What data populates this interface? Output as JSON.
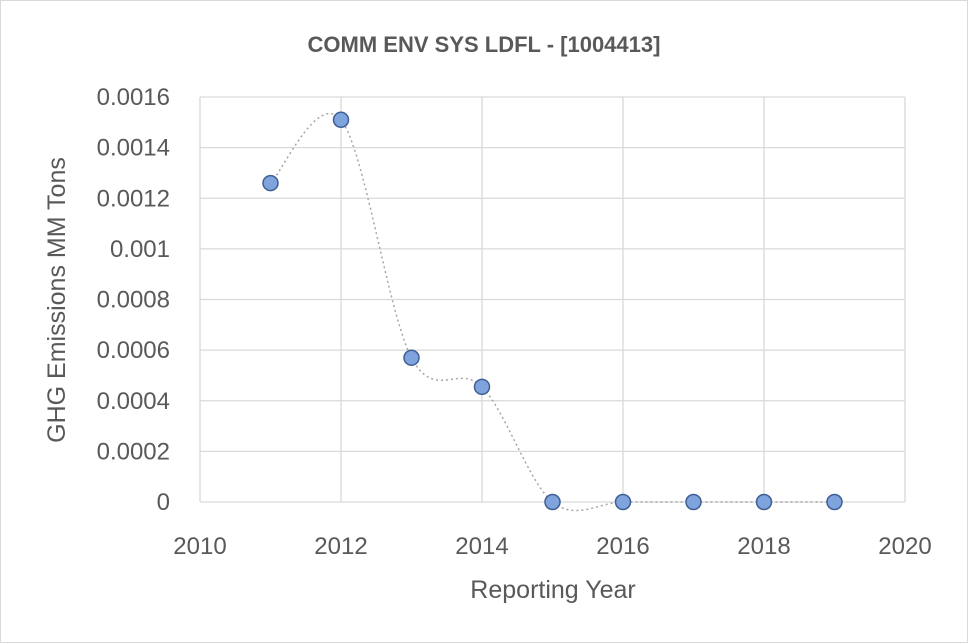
{
  "chart_data": {
    "type": "scatter",
    "title": "COMM ENV SYS LDFL - [1004413]",
    "xlabel": "Reporting Year",
    "ylabel": "GHG Emissions MM Tons",
    "xlim": [
      2010,
      2020
    ],
    "ylim": [
      0,
      0.0016
    ],
    "x_ticks": [
      "2010",
      "2012",
      "2014",
      "2016",
      "2018",
      "2020"
    ],
    "y_ticks": [
      "0",
      "0.0002",
      "0.0004",
      "0.0006",
      "0.0008",
      "0.001",
      "0.0012",
      "0.0014",
      "0.0016"
    ],
    "grid": true,
    "smoothed_line": true,
    "series": [
      {
        "name": "GHG Emissions",
        "x": [
          2011,
          2012,
          2013,
          2014,
          2015,
          2016,
          2017,
          2018,
          2019
        ],
        "y": [
          0.00126,
          0.00151,
          0.00057,
          0.000455,
          0,
          0,
          0,
          0,
          0
        ]
      }
    ],
    "colors": {
      "marker_fill": "#7ea3dd",
      "marker_stroke": "#3f5f94",
      "line": "#a6a6a6",
      "grid": "#d9d9d9",
      "text": "#595959"
    }
  }
}
